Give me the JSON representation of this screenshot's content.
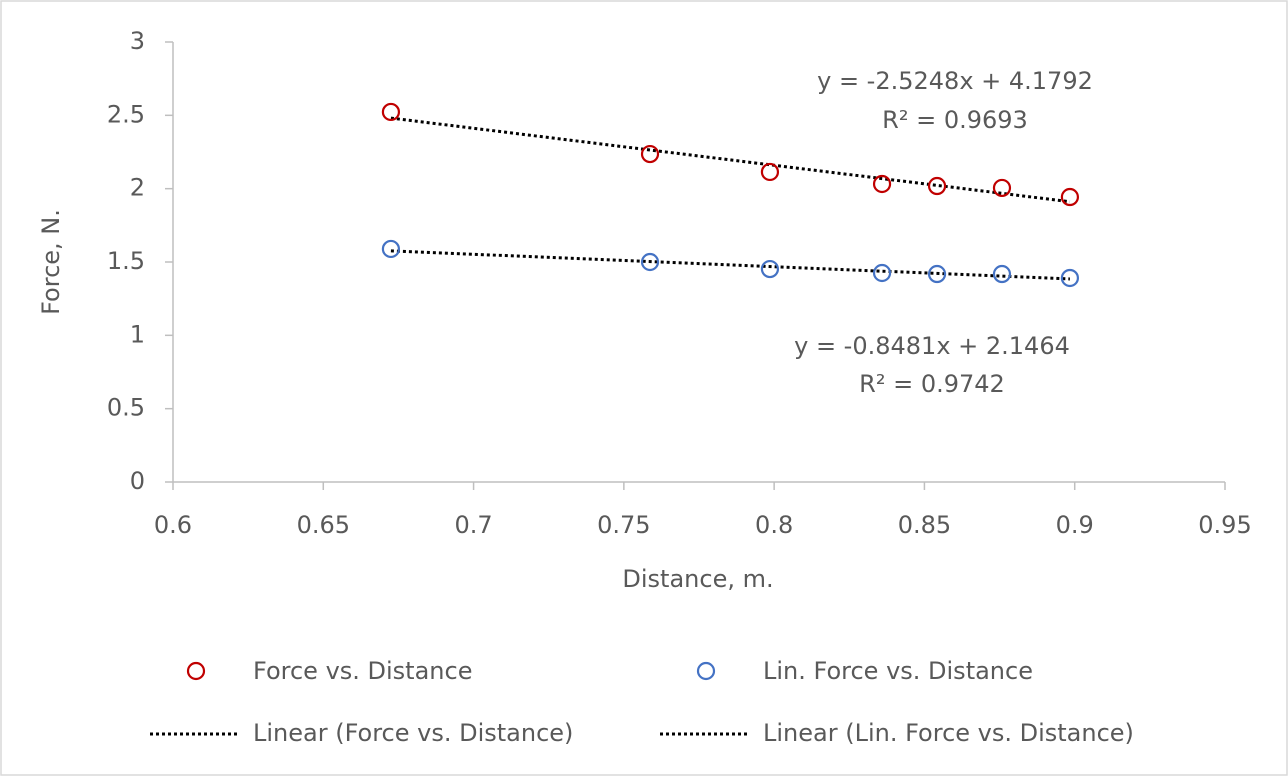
{
  "chart_data": {
    "type": "scatter",
    "x_label": "Distance, m.",
    "y_label": "Force, N.",
    "xlim": [
      0.6,
      0.95
    ],
    "xticks": [
      0.6,
      0.65,
      0.7,
      0.75,
      0.8,
      0.85,
      0.9,
      0.95
    ],
    "ylim": [
      0,
      3
    ],
    "yticks": [
      0,
      0.5,
      1,
      1.5,
      2,
      2.5,
      3
    ],
    "grid": false,
    "legend": "bottom",
    "series": [
      {
        "name": "Force vs. Distance",
        "color": "#c00000",
        "x": [
          0.6725,
          0.7587,
          0.7986,
          0.8359,
          0.8542,
          0.8758,
          0.8984
        ],
        "values": [
          2.523,
          2.236,
          2.114,
          2.032,
          2.018,
          2.005,
          1.943
        ]
      },
      {
        "name": "Lin. Force vs. Distance",
        "color": "#4472c4",
        "x": [
          0.6725,
          0.7587,
          0.7986,
          0.8359,
          0.8542,
          0.8758,
          0.8984
        ],
        "values": [
          1.589,
          1.5,
          1.452,
          1.425,
          1.418,
          1.418,
          1.391
        ]
      }
    ],
    "trendlines": [
      {
        "name": "Linear (Force vs. Distance)",
        "color": "#000000",
        "slope": -2.5248,
        "intercept": 4.1792,
        "equation": "y = -2.5248x + 4.1792",
        "r2_label": "R² = 0.9693"
      },
      {
        "name": "Linear (Lin. Force vs. Distance)",
        "color": "#000000",
        "slope": -0.8481,
        "intercept": 2.1464,
        "equation": "y = -0.8481x + 2.1464",
        "r2_label": "R² = 0.9742"
      }
    ]
  }
}
